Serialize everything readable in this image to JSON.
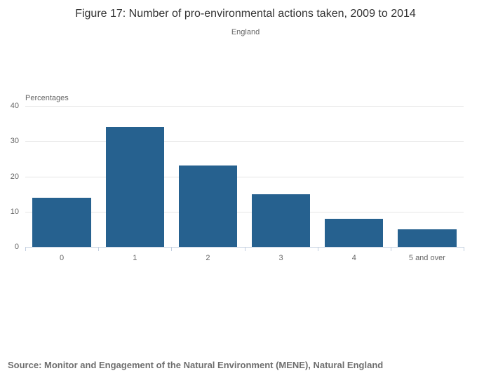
{
  "chart_data": {
    "type": "bar",
    "title": "Figure 17: Number of pro-environmental actions taken, 2009 to 2014",
    "subtitle": "England",
    "categories": [
      "0",
      "1",
      "2",
      "3",
      "4",
      "5 and over"
    ],
    "values": [
      14,
      34,
      23,
      15,
      8,
      5
    ],
    "xlabel": "",
    "ylabel": "Percentages",
    "ylim": [
      0,
      40
    ],
    "yticks": [
      0,
      10,
      20,
      30,
      40
    ],
    "grid": true,
    "legend": "none"
  },
  "footer": {
    "source": "Source: Monitor and Engagement of the Natural Environment (MENE), Natural England"
  },
  "colors": {
    "bar": "#26618f",
    "gridline": "#e6e6e6",
    "axis_line": "#c3cfe0",
    "axis_text": "#666666",
    "title_text": "#333333",
    "subtitle_text": "#666666",
    "source_text": "#6e6e6e",
    "background": "#ffffff"
  }
}
